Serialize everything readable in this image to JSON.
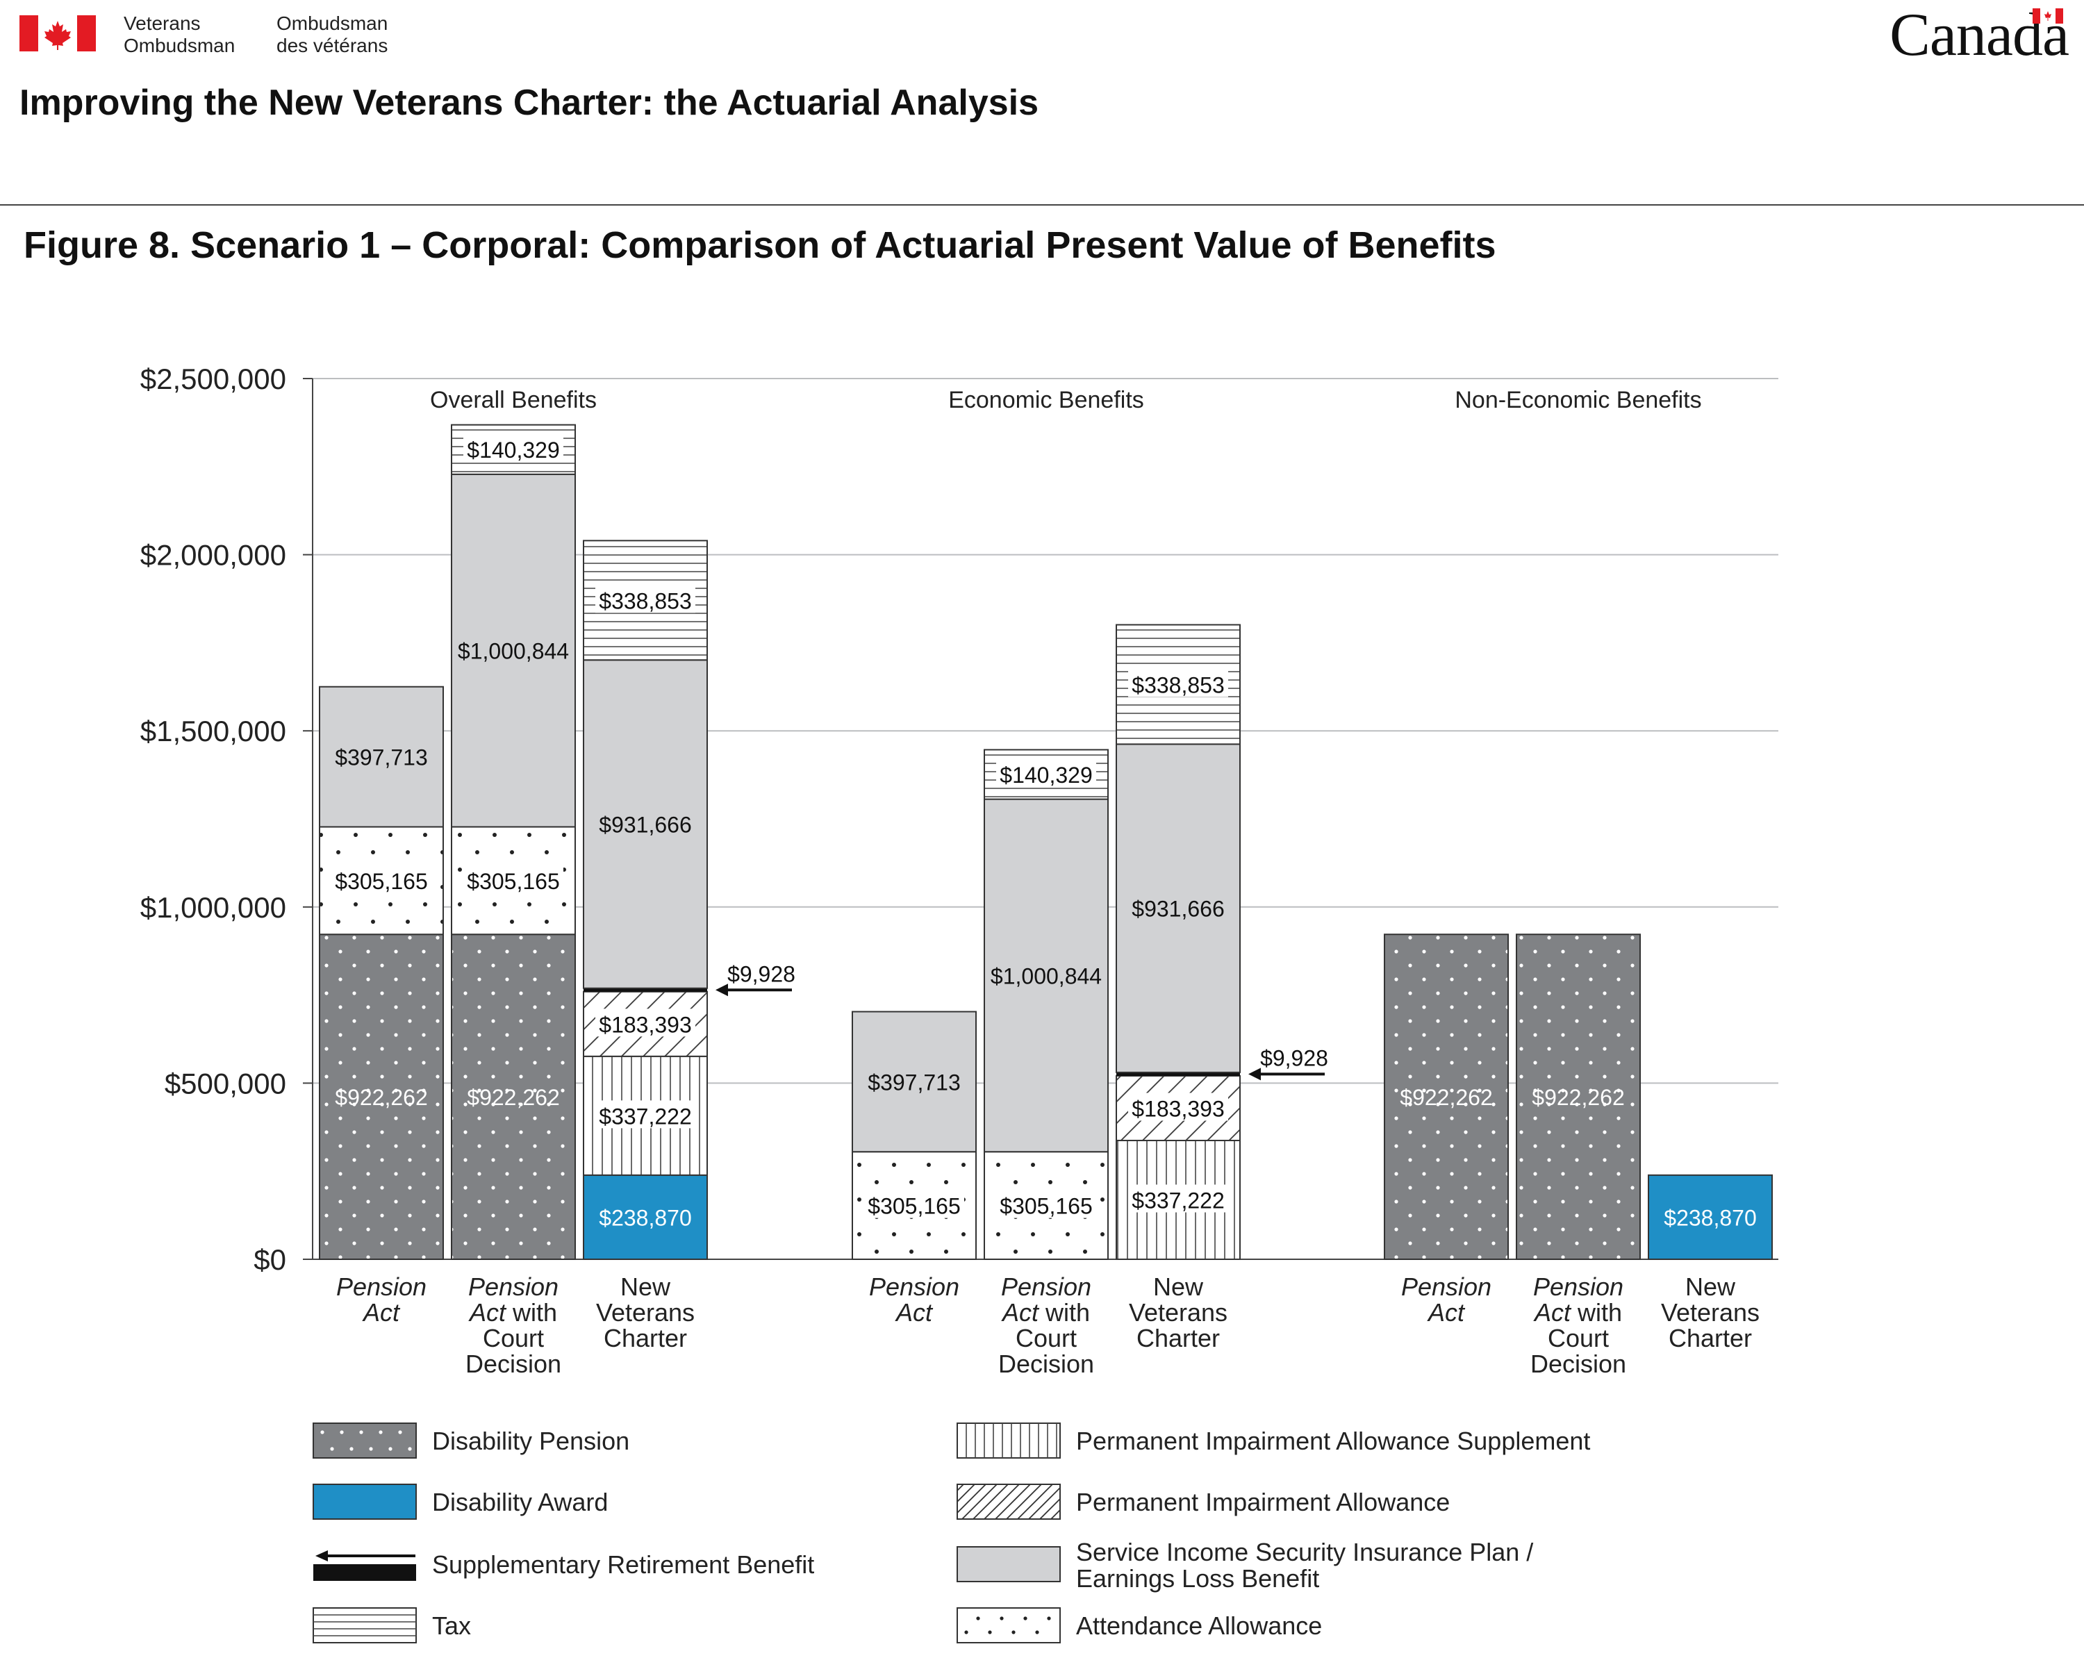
{
  "header": {
    "dept_en_line1": "Veterans",
    "dept_en_line2": "Ombudsman",
    "dept_fr_line1": "Ombudsman",
    "dept_fr_line2": "des vétérans",
    "wordmark": "Canada",
    "report_title": "Improving the New Veterans Charter: the Actuarial Analysis"
  },
  "figure": {
    "title": "Figure 8. Scenario 1 – Corporal: Comparison of Actuarial Present Value of Benefits"
  },
  "colors": {
    "disability_pension": "#808285",
    "disability_award": "#1f8fc6",
    "sisip_elb": "#d1d2d4",
    "gridline": "#bcbec0",
    "bar_outline": "#333333"
  },
  "legend": [
    {
      "key": "disability_pension",
      "label": "Disability Pension"
    },
    {
      "key": "disability_award",
      "label": "Disability Award"
    },
    {
      "key": "srb",
      "label": "Supplementary Retirement Benefit"
    },
    {
      "key": "tax",
      "label": "Tax"
    },
    {
      "key": "pias",
      "label": "Permanent Impairment Allowance Supplement"
    },
    {
      "key": "pia",
      "label": "Permanent Impairment Allowance"
    },
    {
      "key": "sisip_elb",
      "label": "Service Income Security Insurance Plan / Earnings Loss Benefit"
    },
    {
      "key": "attendance",
      "label": "Attendance Allowance"
    }
  ],
  "chart_data": {
    "type": "bar",
    "stacked": true,
    "ylim": [
      0,
      2500000
    ],
    "yticks": [
      "$0",
      "$500,000",
      "$1,000,000",
      "$1,500,000",
      "$2,000,000",
      "$2,500,000"
    ],
    "grid": true,
    "groups": [
      {
        "label": "Overall Benefits",
        "bars": [
          {
            "label": [
              "Pension",
              "Act"
            ],
            "italic_words": [
              "Pension",
              "Act"
            ],
            "segments": [
              {
                "key": "disability_pension",
                "value": 922262,
                "label": "$922,262"
              },
              {
                "key": "attendance",
                "value": 305165,
                "label": "$305,165"
              },
              {
                "key": "sisip_elb",
                "value": 397713,
                "label": "$397,713"
              }
            ]
          },
          {
            "label": [
              "Pension",
              "Act with",
              "Court",
              "Decision"
            ],
            "italic_words": [
              "Pension",
              "Act"
            ],
            "segments": [
              {
                "key": "disability_pension",
                "value": 922262,
                "label": "$922,262"
              },
              {
                "key": "attendance",
                "value": 305165,
                "label": "$305,165"
              },
              {
                "key": "sisip_elb",
                "value": 1000844,
                "label": "$1,000,844"
              },
              {
                "key": "tax",
                "value": 140329,
                "label": "$140,329"
              }
            ]
          },
          {
            "label": [
              "New",
              "Veterans",
              "Charter"
            ],
            "italic_words": [],
            "segments": [
              {
                "key": "disability_award",
                "value": 238870,
                "label": "$238,870"
              },
              {
                "key": "pias",
                "value": 337222,
                "label": "$337,222"
              },
              {
                "key": "pia",
                "value": 183393,
                "label": "$183,393"
              },
              {
                "key": "srb",
                "value": 9928,
                "label": "$9,928",
                "callout": true
              },
              {
                "key": "sisip_elb",
                "value": 931666,
                "label": "$931,666"
              },
              {
                "key": "tax",
                "value": 338853,
                "label": "$338,853"
              }
            ]
          }
        ]
      },
      {
        "label": "Economic Benefits",
        "bars": [
          {
            "label": [
              "Pension",
              "Act"
            ],
            "italic_words": [
              "Pension",
              "Act"
            ],
            "segments": [
              {
                "key": "attendance",
                "value": 305165,
                "label": "$305,165"
              },
              {
                "key": "sisip_elb",
                "value": 397713,
                "label": "$397,713"
              }
            ]
          },
          {
            "label": [
              "Pension",
              "Act with",
              "Court",
              "Decision"
            ],
            "italic_words": [
              "Pension",
              "Act"
            ],
            "segments": [
              {
                "key": "attendance",
                "value": 305165,
                "label": "$305,165"
              },
              {
                "key": "sisip_elb",
                "value": 1000844,
                "label": "$1,000,844"
              },
              {
                "key": "tax",
                "value": 140329,
                "label": "$140,329"
              }
            ]
          },
          {
            "label": [
              "New",
              "Veterans",
              "Charter"
            ],
            "italic_words": [],
            "segments": [
              {
                "key": "pias",
                "value": 337222,
                "label": "$337,222"
              },
              {
                "key": "pia",
                "value": 183393,
                "label": "$183,393"
              },
              {
                "key": "srb",
                "value": 9928,
                "label": "$9,928",
                "callout": true
              },
              {
                "key": "sisip_elb",
                "value": 931666,
                "label": "$931,666"
              },
              {
                "key": "tax",
                "value": 338853,
                "label": "$338,853"
              }
            ]
          }
        ]
      },
      {
        "label": "Non-Economic Benefits",
        "bars": [
          {
            "label": [
              "Pension",
              "Act"
            ],
            "italic_words": [
              "Pension",
              "Act"
            ],
            "segments": [
              {
                "key": "disability_pension",
                "value": 922262,
                "label": "$922,262"
              }
            ]
          },
          {
            "label": [
              "Pension",
              "Act with",
              "Court",
              "Decision"
            ],
            "italic_words": [
              "Pension",
              "Act"
            ],
            "segments": [
              {
                "key": "disability_pension",
                "value": 922262,
                "label": "$922,262"
              }
            ]
          },
          {
            "label": [
              "New",
              "Veterans",
              "Charter"
            ],
            "italic_words": [],
            "segments": [
              {
                "key": "disability_award",
                "value": 238870,
                "label": "$238,870"
              }
            ]
          }
        ]
      }
    ]
  }
}
